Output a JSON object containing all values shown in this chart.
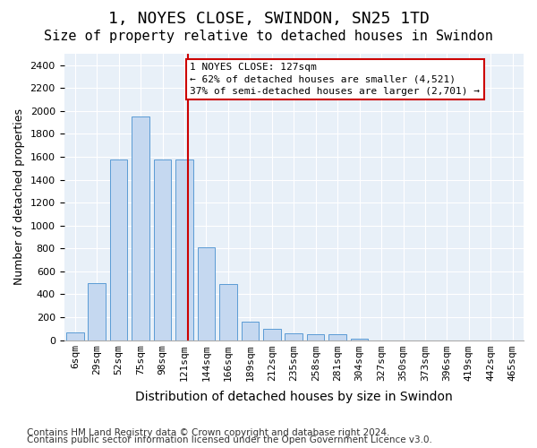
{
  "title": "1, NOYES CLOSE, SWINDON, SN25 1TD",
  "subtitle": "Size of property relative to detached houses in Swindon",
  "xlabel": "Distribution of detached houses by size in Swindon",
  "ylabel": "Number of detached properties",
  "bar_color": "#c5d8f0",
  "bar_edge_color": "#5b9bd5",
  "annotation_line_color": "#cc0000",
  "annotation_box_color": "#cc0000",
  "annotation_text": "1 NOYES CLOSE: 127sqm\n← 62% of detached houses are smaller (4,521)\n37% of semi-detached houses are larger (2,701) →",
  "categories": [
    "6sqm",
    "29sqm",
    "52sqm",
    "75sqm",
    "98sqm",
    "121sqm",
    "144sqm",
    "166sqm",
    "189sqm",
    "212sqm",
    "235sqm",
    "258sqm",
    "281sqm",
    "304sqm",
    "327sqm",
    "350sqm",
    "373sqm",
    "396sqm",
    "419sqm",
    "442sqm",
    "465sqm"
  ],
  "values": [
    70,
    500,
    1580,
    1950,
    1580,
    1580,
    810,
    490,
    160,
    100,
    55,
    50,
    50,
    10,
    0,
    0,
    0,
    0,
    0,
    0,
    0
  ],
  "ylim": [
    0,
    2500
  ],
  "yticks": [
    0,
    200,
    400,
    600,
    800,
    1000,
    1200,
    1400,
    1600,
    1800,
    2000,
    2200,
    2400
  ],
  "plot_bg_color": "#e8f0f8",
  "property_line_x": 5.15,
  "footer1": "Contains HM Land Registry data © Crown copyright and database right 2024.",
  "footer2": "Contains public sector information licensed under the Open Government Licence v3.0.",
  "title_fontsize": 13,
  "subtitle_fontsize": 11,
  "xlabel_fontsize": 10,
  "ylabel_fontsize": 9,
  "tick_fontsize": 8,
  "annotation_fontsize": 8,
  "footer_fontsize": 7.5
}
